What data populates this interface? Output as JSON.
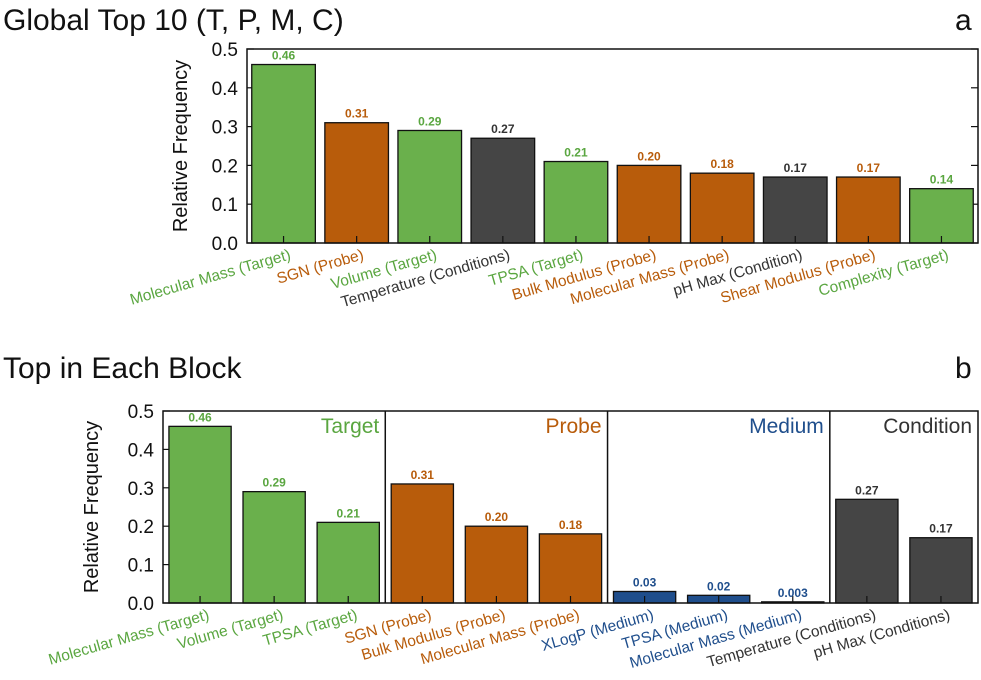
{
  "colors": {
    "Target": "#6ab04c",
    "Probe": "#b85c0b",
    "Medium": "#1f4e8c",
    "Condition": "#454545",
    "Target_text": "#5aa640",
    "Probe_text": "#b85c0b",
    "Medium_text": "#1f4e8c",
    "Condition_text": "#333333"
  },
  "chart_data": [
    {
      "type": "bar",
      "title": "Global Top 10 (T, P, M, C)",
      "panel_label": "a",
      "ylabel": "Relative Frequency",
      "ylim": [
        0,
        0.5
      ],
      "yticks": [
        "0.0",
        "0.1",
        "0.2",
        "0.3",
        "0.4",
        "0.5"
      ],
      "categories": [
        "Molecular Mass (Target)",
        "SGN (Probe)",
        "Volume (Target)",
        "Temperature (Conditions)",
        "TPSA (Target)",
        "Bulk Modulus (Probe)",
        "Molecular Mass (Probe)",
        "pH Max (Condition)",
        "Shear Modulus (Probe)",
        "Complexity (Target)"
      ],
      "groups": [
        "Target",
        "Probe",
        "Target",
        "Condition",
        "Target",
        "Probe",
        "Probe",
        "Condition",
        "Probe",
        "Target"
      ],
      "values": [
        0.46,
        0.31,
        0.29,
        0.27,
        0.21,
        0.2,
        0.18,
        0.17,
        0.17,
        0.14
      ],
      "value_labels": [
        "0.46",
        "0.31",
        "0.29",
        "0.27",
        "0.21",
        "0.20",
        "0.18",
        "0.17",
        "0.17",
        "0.14"
      ]
    },
    {
      "type": "bar",
      "title": "Top in Each Block",
      "panel_label": "b",
      "ylabel": "Relative Frequency",
      "ylim": [
        0,
        0.5
      ],
      "yticks": [
        "0.0",
        "0.1",
        "0.2",
        "0.3",
        "0.4",
        "0.5"
      ],
      "blocks": [
        {
          "name": "Target",
          "categories": [
            "Molecular Mass (Target)",
            "Volume (Target)",
            "TPSA (Target)"
          ],
          "values": [
            0.46,
            0.29,
            0.21
          ],
          "value_labels": [
            "0.46",
            "0.29",
            "0.21"
          ]
        },
        {
          "name": "Probe",
          "categories": [
            "SGN (Probe)",
            "Bulk Modulus (Probe)",
            "Molecular Mass (Probe)"
          ],
          "values": [
            0.31,
            0.2,
            0.18
          ],
          "value_labels": [
            "0.31",
            "0.20",
            "0.18"
          ]
        },
        {
          "name": "Medium",
          "categories": [
            "XLogP (Medium)",
            "TPSA (Medium)",
            "Molecular Mass (Medium)"
          ],
          "values": [
            0.03,
            0.02,
            0.003
          ],
          "value_labels": [
            "0.03",
            "0.02",
            "0.003"
          ]
        },
        {
          "name": "Condition",
          "categories": [
            "Temperature (Conditions)",
            "pH Max (Conditions)"
          ],
          "values": [
            0.27,
            0.17
          ],
          "value_labels": [
            "0.27",
            "0.17"
          ]
        }
      ]
    }
  ]
}
